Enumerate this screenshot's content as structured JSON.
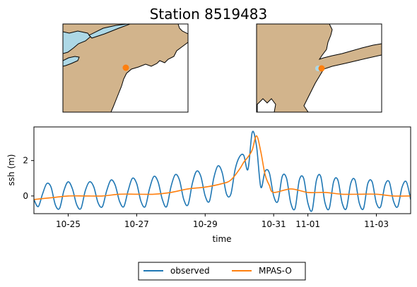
{
  "title": "Station 8519483",
  "maps": [
    {
      "name": "regional-map",
      "land_color": "#d2b48c",
      "water_color": "#add8e6",
      "marker_color": "#ff7f0e"
    },
    {
      "name": "local-map",
      "land_color": "#d2b48c",
      "water_color": "#ffffff",
      "marker_color": "#ff7f0e"
    }
  ],
  "chart_data": {
    "type": "line",
    "xlabel": "time",
    "ylabel": "ssh (m)",
    "xlim": [
      "2012-10-24",
      "2012-11-04"
    ],
    "ylim": [
      -1.0,
      3.9
    ],
    "yticks": [
      0,
      2
    ],
    "xticks": [
      {
        "date": "2012-10-25",
        "label": "10-25"
      },
      {
        "date": "2012-10-27",
        "label": "10-27"
      },
      {
        "date": "2012-10-29",
        "label": "10-29"
      },
      {
        "date": "2012-10-31",
        "label": "10-31"
      },
      {
        "date": "2012-11-01",
        "label": "11-01"
      },
      {
        "date": "2012-11-03",
        "label": "11-03"
      }
    ],
    "grid": false,
    "legend_position": "bottom-center",
    "series": [
      {
        "name": "observed",
        "color": "#1f77b4",
        "x": [
          "2012-10-24 00:00",
          "2012-10-24 03:00",
          "2012-10-24 06:00",
          "2012-10-24 09:00",
          "2012-10-24 12:00",
          "2012-10-24 15:00",
          "2012-10-24 18:00",
          "2012-10-24 21:00",
          "2012-10-25 00:00",
          "2012-10-25 03:00",
          "2012-10-25 06:00",
          "2012-10-25 09:00",
          "2012-10-25 12:00",
          "2012-10-25 15:00",
          "2012-10-25 18:00",
          "2012-10-25 21:00",
          "2012-10-26 00:00",
          "2012-10-26 03:00",
          "2012-10-26 06:00",
          "2012-10-26 09:00",
          "2012-10-26 12:00",
          "2012-10-26 15:00",
          "2012-10-26 18:00",
          "2012-10-26 21:00",
          "2012-10-27 00:00",
          "2012-10-27 03:00",
          "2012-10-27 06:00",
          "2012-10-27 09:00",
          "2012-10-27 12:00",
          "2012-10-27 15:00",
          "2012-10-27 18:00",
          "2012-10-27 21:00",
          "2012-10-28 00:00",
          "2012-10-28 03:00",
          "2012-10-28 06:00",
          "2012-10-28 09:00",
          "2012-10-28 12:00",
          "2012-10-28 15:00",
          "2012-10-28 18:00",
          "2012-10-28 21:00",
          "2012-10-29 00:00",
          "2012-10-29 03:00",
          "2012-10-29 06:00",
          "2012-10-29 09:00",
          "2012-10-29 12:00",
          "2012-10-29 15:00",
          "2012-10-29 18:00",
          "2012-10-29 21:00",
          "2012-10-30 00:00",
          "2012-10-30 03:00",
          "2012-10-30 06:00",
          "2012-10-30 09:00",
          "2012-10-30 12:00",
          "2012-10-30 15:00",
          "2012-10-30 18:00",
          "2012-10-30 21:00",
          "2012-10-31 00:00",
          "2012-10-31 03:00",
          "2012-10-31 06:00",
          "2012-10-31 09:00",
          "2012-10-31 12:00",
          "2012-10-31 15:00",
          "2012-10-31 18:00",
          "2012-10-31 21:00",
          "2012-11-01 00:00",
          "2012-11-01 03:00",
          "2012-11-01 06:00",
          "2012-11-01 09:00",
          "2012-11-01 12:00",
          "2012-11-01 15:00",
          "2012-11-01 18:00",
          "2012-11-01 21:00",
          "2012-11-02 00:00",
          "2012-11-02 03:00",
          "2012-11-02 06:00",
          "2012-11-02 09:00",
          "2012-11-02 12:00",
          "2012-11-02 15:00",
          "2012-11-02 18:00",
          "2012-11-02 21:00",
          "2012-11-03 00:00",
          "2012-11-03 03:00",
          "2012-11-03 06:00",
          "2012-11-03 09:00",
          "2012-11-03 12:00",
          "2012-11-03 15:00",
          "2012-11-03 18:00",
          "2012-11-03 21:00",
          "2012-11-04 00:00"
        ],
        "y": [
          -0.2,
          -0.6,
          0.1,
          0.7,
          0.5,
          -0.5,
          -0.7,
          0.3,
          0.8,
          0.4,
          -0.5,
          -0.7,
          0.3,
          0.8,
          0.5,
          -0.4,
          -0.6,
          0.3,
          0.9,
          0.6,
          -0.3,
          -0.6,
          0.3,
          1.0,
          0.7,
          -0.3,
          -0.6,
          0.4,
          1.1,
          0.8,
          -0.2,
          -0.6,
          0.5,
          1.2,
          0.9,
          -0.2,
          -0.5,
          0.7,
          1.4,
          1.1,
          0.0,
          -0.3,
          1.0,
          1.7,
          1.3,
          0.1,
          0.1,
          1.5,
          2.2,
          2.3,
          1.5,
          3.6,
          2.8,
          0.5,
          1.4,
          1.3,
          0.0,
          -0.3,
          1.1,
          1.0,
          -0.4,
          -0.7,
          0.9,
          1.0,
          -0.4,
          -0.8,
          0.9,
          1.1,
          -0.4,
          -0.7,
          0.8,
          0.9,
          -0.4,
          -0.7,
          0.7,
          0.9,
          -0.4,
          -0.7,
          0.7,
          0.8,
          -0.4,
          -0.6,
          0.6,
          0.8,
          -0.3,
          -0.6,
          0.5,
          0.8,
          -0.2
        ]
      },
      {
        "name": "MPAS-O",
        "color": "#ff7f0e",
        "x": [
          "2012-10-24 00:00",
          "2012-10-24 12:00",
          "2012-10-25 00:00",
          "2012-10-25 12:00",
          "2012-10-26 00:00",
          "2012-10-26 12:00",
          "2012-10-27 00:00",
          "2012-10-27 12:00",
          "2012-10-28 00:00",
          "2012-10-28 12:00",
          "2012-10-29 00:00",
          "2012-10-29 12:00",
          "2012-10-29 18:00",
          "2012-10-30 00:00",
          "2012-10-30 03:00",
          "2012-10-30 06:00",
          "2012-10-30 09:00",
          "2012-10-30 12:00",
          "2012-10-30 15:00",
          "2012-10-30 18:00",
          "2012-10-30 21:00",
          "2012-10-31 00:00",
          "2012-10-31 12:00",
          "2012-11-01 00:00",
          "2012-11-01 12:00",
          "2012-11-02 00:00",
          "2012-11-02 12:00",
          "2012-11-03 00:00",
          "2012-11-03 12:00",
          "2012-11-04 00:00"
        ],
        "y": [
          -0.2,
          -0.1,
          0.0,
          0.0,
          0.0,
          0.1,
          0.1,
          0.1,
          0.2,
          0.4,
          0.5,
          0.7,
          0.9,
          1.5,
          1.9,
          2.2,
          2.6,
          3.4,
          2.5,
          1.2,
          0.6,
          0.2,
          0.4,
          0.2,
          0.2,
          0.1,
          0.1,
          0.1,
          0.0,
          0.0
        ]
      }
    ]
  }
}
